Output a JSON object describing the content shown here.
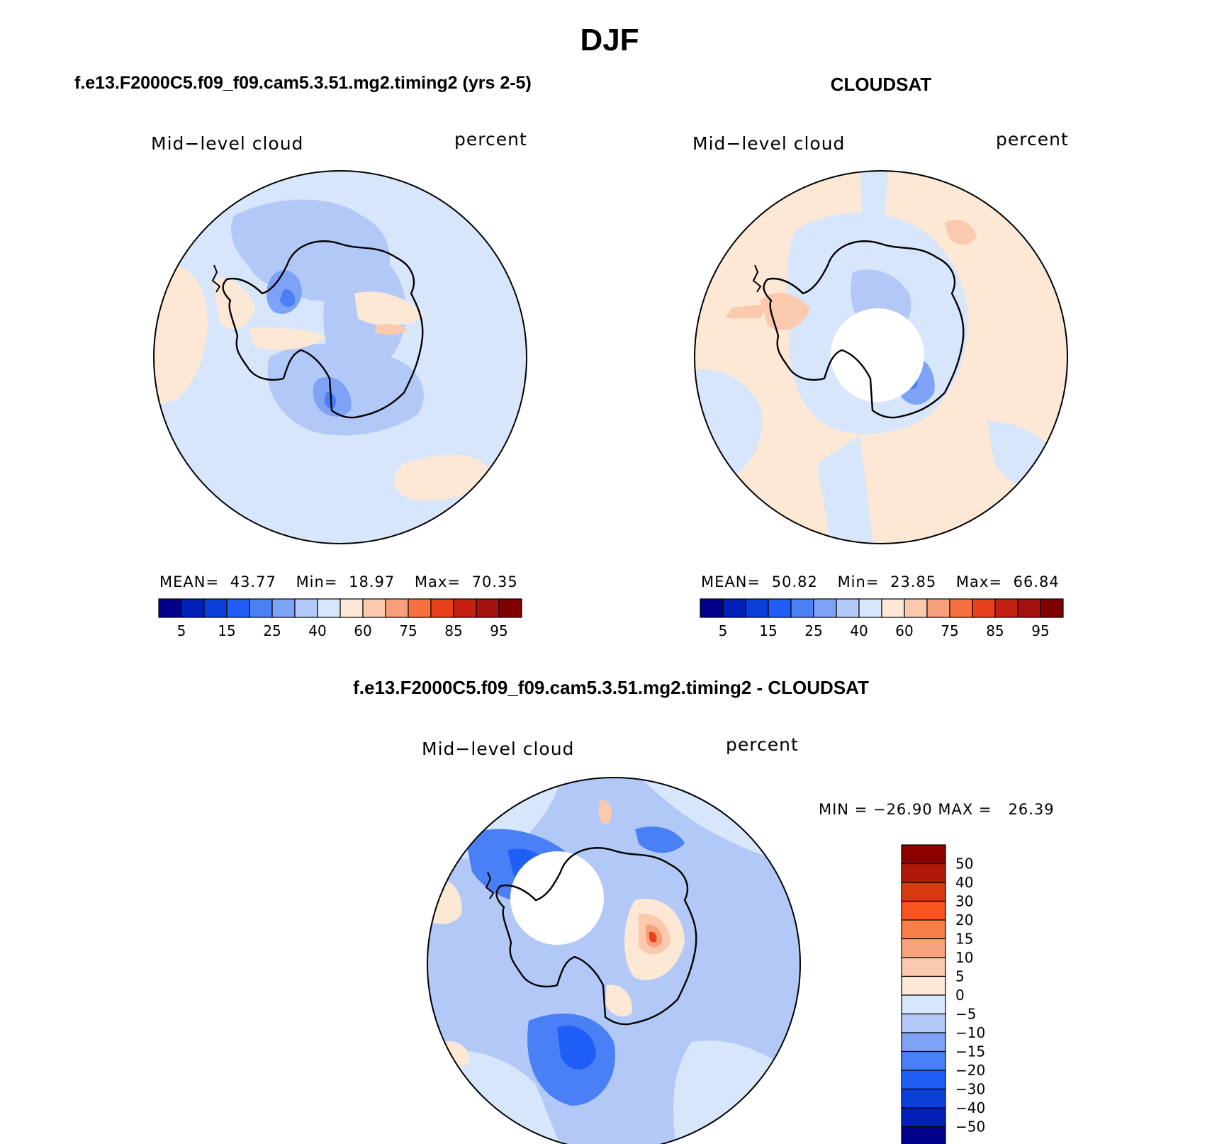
{
  "page_title": "DJF",
  "panels": [
    {
      "title": "f.e13.F2000C5.f09_f09.cam5.3.51.mg2.timing2 (yrs 2-5)",
      "left_label": "Mid−level cloud",
      "right_label": "percent",
      "stats": {
        "mean_label": "MEAN=",
        "mean": "43.77",
        "min_label": "Min=",
        "min": "18.97",
        "max_label": "Max=",
        "max": "70.35"
      }
    },
    {
      "title": "CLOUDSAT",
      "left_label": "Mid−level cloud",
      "right_label": "percent",
      "stats": {
        "mean_label": "MEAN=",
        "mean": "50.82",
        "min_label": "Min=",
        "min": "23.85",
        "max_label": "Max=",
        "max": "66.84"
      }
    },
    {
      "title": "f.e13.F2000C5.f09_f09.cam5.3.51.mg2.timing2 - CLOUDSAT",
      "left_label": "Mid−level cloud",
      "right_label": "percent",
      "stats_text": "MIN = −26.90 MAX =   26.39"
    }
  ],
  "colorbar_abs": {
    "colors": [
      "#00008b",
      "#0020b8",
      "#0a3fd8",
      "#1f5ef7",
      "#4a80f5",
      "#7ea2f5",
      "#b2c9f7",
      "#d7e6fb",
      "#fde7d5",
      "#fbc9ad",
      "#f8a07c",
      "#f87040",
      "#e8401a",
      "#c42010",
      "#a51010",
      "#800000"
    ],
    "labels": [
      "5",
      "15",
      "25",
      "40",
      "60",
      "75",
      "85",
      "95"
    ]
  },
  "colorbar_diff": {
    "colors": [
      "#8b0000",
      "#b01808",
      "#d83a10",
      "#f8541f",
      "#f87f48",
      "#f8a27e",
      "#fbcaae",
      "#fde7d5",
      "#d7e6fb",
      "#b2c9f7",
      "#7ea2f5",
      "#4a80f5",
      "#1f5ef7",
      "#0a3fd8",
      "#0020b8",
      "#00008b"
    ],
    "labels": [
      "50",
      "40",
      "30",
      "20",
      "15",
      "10",
      "5",
      "0",
      "−5",
      "−10",
      "−15",
      "−20",
      "−30",
      "−40",
      "−50"
    ]
  },
  "map_colors": {
    "light_blue": "#d7e6fb",
    "mid_blue": "#b2c9f7",
    "blue": "#7ea2f5",
    "deep_blue": "#4a80f5",
    "darker_blue": "#1f5ef7",
    "peach": "#fde7d5",
    "salmon": "#fbc9ad",
    "orange": "#f8a07c",
    "red": "#e8401a"
  }
}
